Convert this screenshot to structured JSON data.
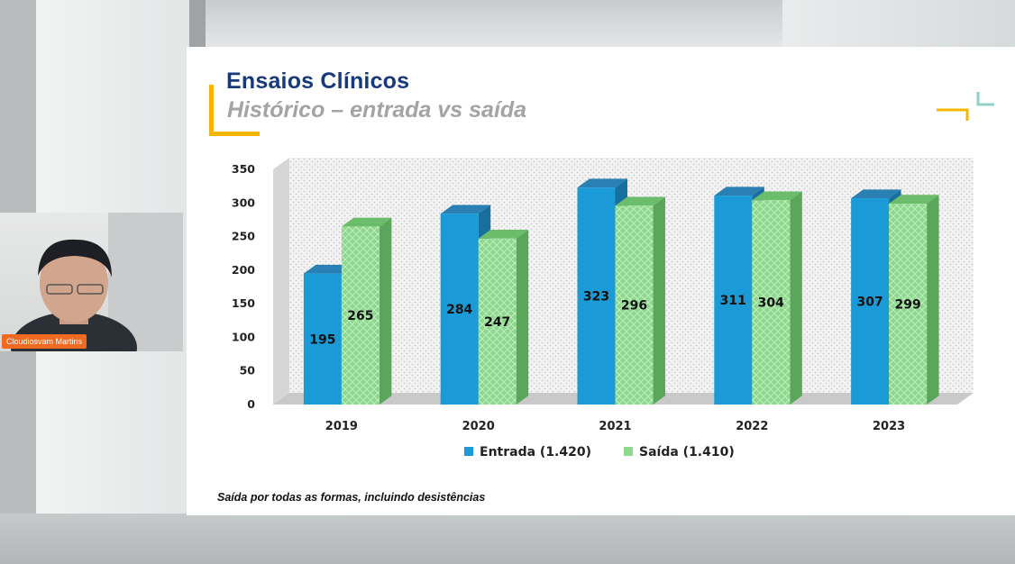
{
  "slide": {
    "title": "Ensaios Clínicos",
    "subtitle": "Histórico – entrada vs saída",
    "footnote": "Saída por todas as formas, incluindo desistências"
  },
  "webcam": {
    "participant_name": "Cloudiosvam Martins"
  },
  "colors": {
    "entrada": "#1a9ad6",
    "saida": "#8ed88e",
    "title": "#163a7a",
    "accent": "#f2b705"
  },
  "chart_data": {
    "type": "bar",
    "categories": [
      "2019",
      "2020",
      "2021",
      "2022",
      "2023"
    ],
    "series": [
      {
        "name": "Entrada (1.420)",
        "values": [
          195,
          284,
          323,
          311,
          307
        ],
        "labels": [
          "195",
          "284",
          "323",
          "311",
          "307"
        ]
      },
      {
        "name": "Saída (1.410)",
        "values": [
          265,
          247,
          296,
          304,
          299
        ],
        "labels": [
          "265",
          "247",
          "296",
          "304",
          "299"
        ]
      }
    ],
    "ylim": [
      0,
      350
    ],
    "yticks": [
      "0",
      "50",
      "100",
      "150",
      "200",
      "250",
      "300",
      "350"
    ],
    "legend": "bottom",
    "style": "3d-clustered"
  }
}
